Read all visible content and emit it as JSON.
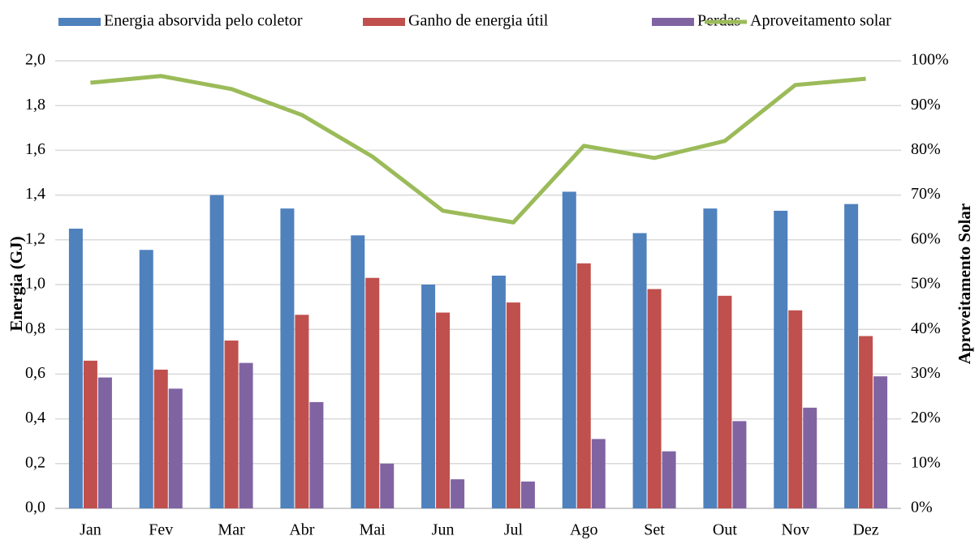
{
  "chart_data": {
    "type": "bar_line",
    "categories": [
      "Jan",
      "Fev",
      "Mar",
      "Abr",
      "Mai",
      "Jun",
      "Jul",
      "Ago",
      "Set",
      "Out",
      "Nov",
      "Dez"
    ],
    "series": [
      {
        "name": "Energia absorvida pelo coletor",
        "color": "#4f81bd",
        "type": "bar",
        "values": [
          1.25,
          1.155,
          1.4,
          1.34,
          1.22,
          1.0,
          1.04,
          1.415,
          1.23,
          1.34,
          1.33,
          1.36
        ]
      },
      {
        "name": "Ganho de energia útil",
        "color": "#c0504d",
        "type": "bar",
        "values": [
          0.66,
          0.62,
          0.75,
          0.865,
          1.03,
          0.875,
          0.92,
          1.095,
          0.98,
          0.95,
          0.885,
          0.77
        ]
      },
      {
        "name": "Perdas",
        "color": "#8064a2",
        "type": "bar",
        "values": [
          0.585,
          0.535,
          0.65,
          0.475,
          0.2,
          0.13,
          0.12,
          0.31,
          0.255,
          0.39,
          0.45,
          0.59
        ]
      },
      {
        "name": "Aproveitamento solar",
        "color": "#9bbb59",
        "type": "line",
        "axis": "y2",
        "values": [
          95.1,
          96.6,
          93.7,
          87.9,
          78.6,
          66.5,
          63.9,
          81.0,
          78.3,
          82.1,
          94.6,
          96.0
        ]
      }
    ],
    "y_label": "Energia (GJ)",
    "y2_label": "Aproveitamento Solar",
    "ylim": [
      0,
      2
    ],
    "yticks": [
      {
        "value": 0,
        "label": "0,0"
      },
      {
        "value": 0.2,
        "label": "0,2"
      },
      {
        "value": 0.4,
        "label": "0,4"
      },
      {
        "value": 0.6,
        "label": "0,6"
      },
      {
        "value": 0.8,
        "label": "0,8"
      },
      {
        "value": 1,
        "label": "1,0"
      },
      {
        "value": 1.2,
        "label": "1,2"
      },
      {
        "value": 1.4,
        "label": "1,4"
      },
      {
        "value": 1.6,
        "label": "1,6"
      },
      {
        "value": 1.8,
        "label": "1,8"
      },
      {
        "value": 2,
        "label": "2,0"
      }
    ],
    "y2lim": [
      0,
      100
    ],
    "y2ticks": [
      {
        "value": 0,
        "label": "0%"
      },
      {
        "value": 10,
        "label": "10%"
      },
      {
        "value": 20,
        "label": "20%"
      },
      {
        "value": 30,
        "label": "30%"
      },
      {
        "value": 40,
        "label": "40%"
      },
      {
        "value": 50,
        "label": "50%"
      },
      {
        "value": 60,
        "label": "60%"
      },
      {
        "value": 70,
        "label": "70%"
      },
      {
        "value": 80,
        "label": "80%"
      },
      {
        "value": 90,
        "label": "90%"
      },
      {
        "value": 100,
        "label": "100%"
      }
    ],
    "grid": true,
    "legend": "top"
  }
}
